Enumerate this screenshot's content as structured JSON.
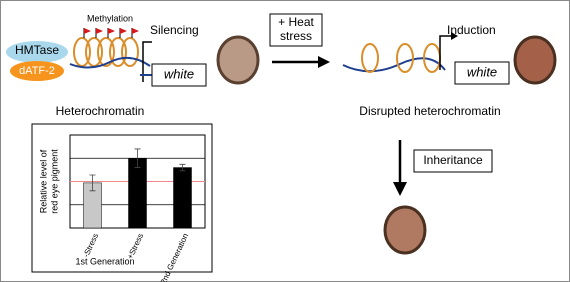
{
  "left": {
    "enzyme": "HMTase",
    "factor": "dATF-2",
    "mark_label": "Methylation",
    "effect": "Silencing",
    "gene": "white",
    "caption": "Heterochromatin"
  },
  "treatment": [
    "+ Heat",
    "stress"
  ],
  "right": {
    "effect": "Induction",
    "gene": "white",
    "caption": "Disrupted heterochromatin"
  },
  "inheritance": "Inheritance",
  "chart_data": {
    "type": "bar",
    "ylabel": [
      "Relative level of",
      "red eye pigment"
    ],
    "xlabel": "1st Generation",
    "categories": [
      "-Stress",
      "+Stress",
      "2nd Generation"
    ],
    "values": [
      0.97,
      1.5,
      1.3
    ],
    "errors": [
      0.17,
      0.2,
      0.07
    ],
    "colors": [
      "#c8c8c8",
      "#000000",
      "#000000"
    ],
    "ylim": [
      0,
      2
    ],
    "grid_lines": [
      0.5,
      1.5
    ],
    "reference_line": {
      "value": 1,
      "color": "#f08a8a"
    }
  }
}
